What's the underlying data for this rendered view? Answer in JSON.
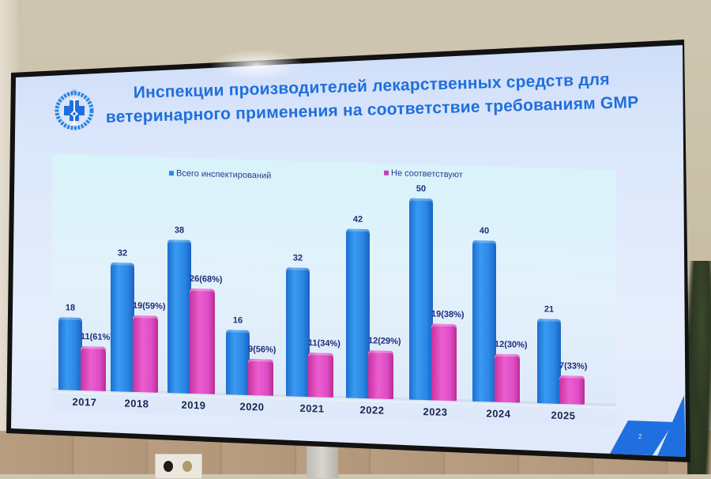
{
  "slide": {
    "title_line1": "Инспекции производителей лекарственных средств для",
    "title_line2": "ветеринарного применения на соответствие требованиям GMP",
    "page_number": "2",
    "logo": "vet-pharma-logo-icon"
  },
  "colors": {
    "title": "#1f6fdc",
    "series_total": "#2b88e6",
    "series_noncompliant": "#df4cc6",
    "label_text": "#1e2d78"
  },
  "chart_data": {
    "type": "bar",
    "title": "Инспекции производителей лекарственных средств для ветеринарного применения на соответствие требованиям GMP",
    "xlabel": "",
    "ylabel": "",
    "categories": [
      "2017",
      "2018",
      "2019",
      "2020",
      "2021",
      "2022",
      "2023",
      "2024",
      "2025"
    ],
    "series": [
      {
        "name": "Всего инспектирований",
        "values": [
          18,
          32,
          38,
          16,
          32,
          42,
          50,
          40,
          21
        ],
        "labels": [
          "18",
          "32",
          "38",
          "16",
          "32",
          "42",
          "50",
          "40",
          "21"
        ]
      },
      {
        "name": "Не соответствуют",
        "values": [
          11,
          19,
          26,
          9,
          11,
          12,
          19,
          12,
          7
        ],
        "percent": [
          61,
          59,
          68,
          56,
          34,
          29,
          38,
          30,
          33
        ],
        "labels": [
          "11(61%)",
          "19(59%)",
          "26(68%)",
          "9(56%)",
          "11(34%)",
          "12(29%)",
          "19(38%)",
          "12(30%)",
          "7(33%)"
        ]
      }
    ],
    "legend": [
      "Всего инспектирований",
      "Не соответствуют"
    ],
    "legend_position": "top",
    "grid": false,
    "ylim": [
      0,
      50
    ]
  }
}
